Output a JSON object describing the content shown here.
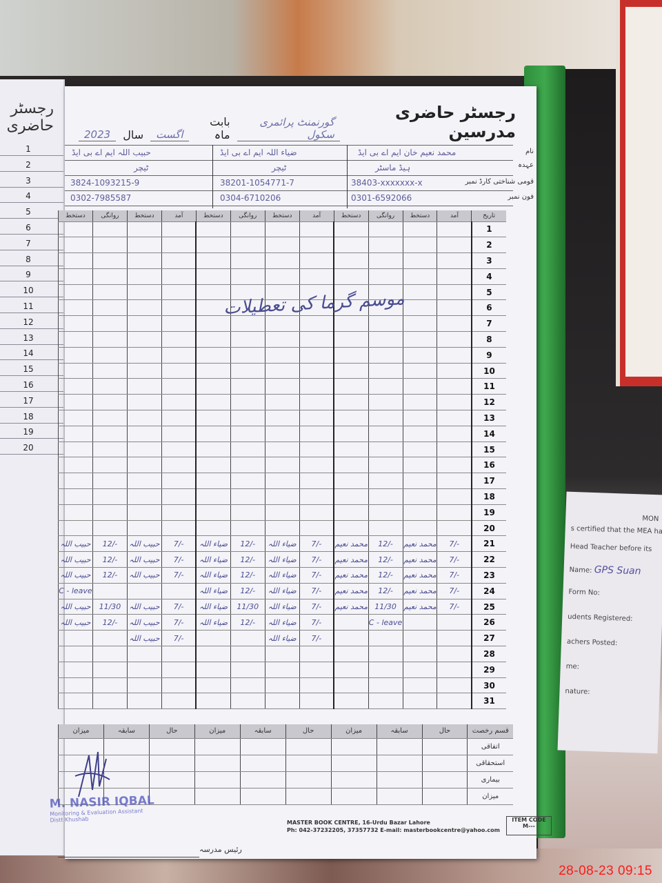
{
  "register": {
    "title": "رجسٹر حاضری مدرسین",
    "school": "گورنمنٹ پرائمری سکول",
    "month_label": "بابت ماہ",
    "month": "اگست",
    "year_label": "سال",
    "year": "2023",
    "info_labels": [
      "نام",
      "عہدہ",
      "قومی شناختی کارڈ نمبر",
      "فون نمبر"
    ],
    "teachers": [
      {
        "name": "محمد نعیم خان ایم اے بی ایڈ",
        "designation": "ہیڈ ماسٹر",
        "cnic": "38403-xxxxxxx-x",
        "phone": "0301-6592066"
      },
      {
        "name": "ضیاء اللہ ایم اے بی ایڈ",
        "designation": "ٹیچر",
        "cnic": "38201-1054771-7",
        "phone": "0304-6710206"
      },
      {
        "name": "حبیب اللہ ایم اے بی ایڈ",
        "designation": "ٹیچر",
        "cnic": "3824-1093215-9",
        "phone": "0302-7985587"
      }
    ],
    "column_headers": [
      "دستخط",
      "روانگی",
      "دستخط",
      "آمد"
    ],
    "date_header": "تاریخ",
    "days": [
      "1",
      "2",
      "3",
      "4",
      "5",
      "6",
      "7",
      "8",
      "9",
      "10",
      "11",
      "12",
      "13",
      "14",
      "15",
      "16",
      "17",
      "18",
      "19",
      "20",
      "21",
      "22",
      "23",
      "24",
      "25",
      "26",
      "27",
      "28",
      "29",
      "30",
      "31"
    ],
    "vacation_note": "موسم گرما کی تعطیلات",
    "entries": [
      {
        "day": "21",
        "c": [
          "حبیب اللہ",
          "12/-",
          "حبیب اللہ",
          "7/-",
          "ضیاء اللہ",
          "12/-",
          "ضیاء اللہ",
          "7/-",
          "محمد نعیم",
          "12/-",
          "محمد نعیم",
          "7/-"
        ]
      },
      {
        "day": "22",
        "c": [
          "حبیب اللہ",
          "12/-",
          "حبیب اللہ",
          "7/-",
          "ضیاء اللہ",
          "12/-",
          "ضیاء اللہ",
          "7/-",
          "محمد نعیم",
          "12/-",
          "محمد نعیم",
          "7/-"
        ]
      },
      {
        "day": "23",
        "c": [
          "حبیب اللہ",
          "12/-",
          "حبیب اللہ",
          "7/-",
          "ضیاء اللہ",
          "12/-",
          "ضیاء اللہ",
          "7/-",
          "محمد نعیم",
          "12/-",
          "محمد نعیم",
          "7/-"
        ]
      },
      {
        "day": "24",
        "c": [
          "C - leave",
          "",
          "",
          "",
          "ضیاء اللہ",
          "12/-",
          "ضیاء اللہ",
          "7/-",
          "محمد نعیم",
          "12/-",
          "محمد نعیم",
          "7/-"
        ]
      },
      {
        "day": "25",
        "c": [
          "حبیب اللہ",
          "11/30",
          "حبیب اللہ",
          "7/-",
          "ضیاء اللہ",
          "11/30",
          "ضیاء اللہ",
          "7/-",
          "محمد نعیم",
          "11/30",
          "محمد نعیم",
          "7/-"
        ]
      },
      {
        "day": "26",
        "c": [
          "حبیب اللہ",
          "12/-",
          "حبیب اللہ",
          "7/-",
          "ضیاء اللہ",
          "12/-",
          "ضیاء اللہ",
          "7/-",
          "",
          "C - leave",
          "",
          ""
        ]
      },
      {
        "day": "27",
        "c": [
          "",
          "",
          "حبیب اللہ",
          "7/-",
          "",
          "",
          "ضیاء اللہ",
          "7/-",
          "",
          "",
          "",
          ""
        ]
      }
    ],
    "summary": {
      "corner": "قسم رخصت",
      "headers": [
        "میزان",
        "سابقہ",
        "حال"
      ],
      "rows": [
        "اتفاقی",
        "استحقاقی",
        "بیماری",
        "میزان"
      ]
    },
    "footer": {
      "head_sign": "رئیس مدرسہ",
      "publisher_line1": "MASTER BOOK CENTRE, 16-Urdu Bazar Lahore",
      "publisher_line2": "Ph: 042-37232205, 37357732 E-mail: masterbookcentre@yahoo.com",
      "item_code_label": "ITEM CODE",
      "item_code": "M---"
    },
    "stamp": {
      "name": "M. NASIR IQBAL",
      "title": "Monitoring & Evaluation Assistant",
      "district": "Distt Khushab"
    }
  },
  "left_page": {
    "title": "رجسٹر حاضری",
    "numbers": [
      "1",
      "2",
      "3",
      "4",
      "5",
      "6",
      "7",
      "8",
      "9",
      "10",
      "11",
      "12",
      "13",
      "14",
      "15",
      "16",
      "17",
      "18",
      "19",
      "20"
    ]
  },
  "side_form": {
    "heading": "MON",
    "lines": [
      "s certified that the MEA has",
      "Head Teacher before its",
      "Name:",
      "Form No:",
      "udents Registered:",
      "achers Posted:",
      "me:",
      "nature:"
    ],
    "name_value": "GPS Suan"
  },
  "timestamp": "28-08-23  09:15",
  "colors": {
    "ink": "#4a4d8f",
    "stamp": "#5a5fc0",
    "timestamp": "#ff1a1a",
    "book_green": "#3fa84d"
  }
}
